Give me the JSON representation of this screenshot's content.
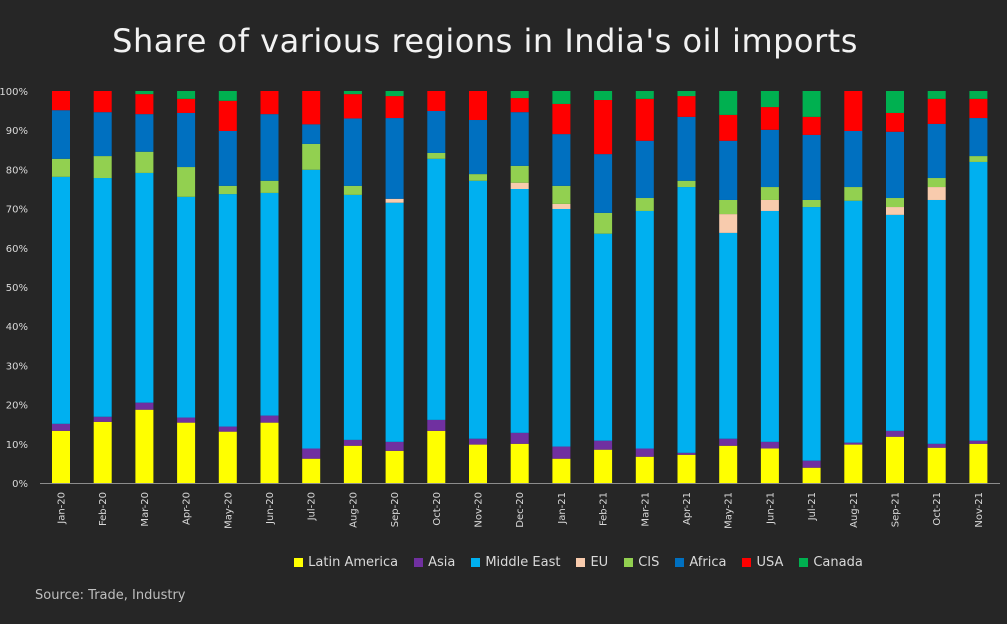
{
  "chart_data": {
    "type": "bar",
    "stacked": true,
    "percent": true,
    "title": "Share of various regions in India's oil imports",
    "source": "Source: Trade, Industry",
    "categories": [
      "Jan-20",
      "Feb-20",
      "Mar-20",
      "Apr-20",
      "May-20",
      "Jun-20",
      "Jul-20",
      "Aug-20",
      "Sep-20",
      "Oct-20",
      "Nov-20",
      "Dec-20",
      "Jan-21",
      "Feb-21",
      "Mar-21",
      "Apr-21",
      "May-21",
      "Jun-21",
      "Jul-21",
      "Aug-21",
      "Sep-21",
      "Oct-21",
      "Nov-21"
    ],
    "ylim": [
      0,
      100
    ],
    "yticks": [
      "0%",
      "10%",
      "20%",
      "30%",
      "40%",
      "50%",
      "60%",
      "70%",
      "80%",
      "90%",
      "100%"
    ],
    "grid": false,
    "legend_position": "bottom",
    "series": [
      {
        "name": "Latin America",
        "color": "#FFFF00",
        "values": [
          13.3,
          15.6,
          18.7,
          15.4,
          13.1,
          15.4,
          6.2,
          9.5,
          8.2,
          13.3,
          9.8,
          10.0,
          6.2,
          8.5,
          6.7,
          7.2,
          9.5,
          8.8,
          3.9,
          9.8,
          11.8,
          9.0,
          10.0
        ]
      },
      {
        "name": "Asia",
        "color": "#7030A0",
        "values": [
          1.8,
          1.3,
          1.8,
          1.3,
          1.3,
          1.8,
          2.6,
          1.5,
          2.3,
          2.8,
          1.5,
          2.8,
          3.1,
          2.3,
          2.1,
          0.5,
          1.8,
          1.7,
          1.8,
          0.5,
          1.5,
          1.0,
          0.8
        ]
      },
      {
        "name": "Middle East",
        "color": "#00B0F0",
        "values": [
          63.0,
          60.9,
          58.6,
          56.3,
          59.3,
          56.8,
          71.1,
          62.5,
          61.0,
          66.6,
          65.8,
          62.2,
          60.6,
          52.8,
          60.6,
          67.8,
          52.5,
          58.9,
          64.7,
          61.7,
          55.1,
          62.2,
          71.1
        ]
      },
      {
        "name": "EU",
        "color": "#F8CBAD",
        "values": [
          0,
          0,
          0,
          0,
          0,
          0,
          0,
          0,
          1.0,
          0,
          0,
          1.6,
          1.3,
          0,
          0,
          0,
          4.8,
          2.8,
          0,
          0,
          2.0,
          3.3,
          0
        ]
      },
      {
        "name": "CIS",
        "color": "#92D050",
        "values": [
          4.6,
          5.6,
          5.4,
          7.6,
          2.1,
          3.1,
          6.6,
          2.3,
          0,
          1.5,
          1.7,
          4.3,
          4.6,
          5.3,
          3.3,
          1.6,
          3.6,
          3.3,
          1.8,
          3.5,
          2.3,
          2.3,
          1.5
        ]
      },
      {
        "name": "Africa",
        "color": "#0070C0",
        "values": [
          12.4,
          11.2,
          9.6,
          13.8,
          14.0,
          17.0,
          5.0,
          17.2,
          20.6,
          10.7,
          13.8,
          13.7,
          13.2,
          15.0,
          14.6,
          16.3,
          15.1,
          14.6,
          16.6,
          14.3,
          16.9,
          13.8,
          9.7
        ]
      },
      {
        "name": "USA",
        "color": "#FF0000",
        "values": [
          4.9,
          5.4,
          5.1,
          3.6,
          7.7,
          5.9,
          8.5,
          6.2,
          5.6,
          5.1,
          7.4,
          3.6,
          7.7,
          13.8,
          10.7,
          5.3,
          6.6,
          5.8,
          4.6,
          10.2,
          4.8,
          6.4,
          4.9
        ]
      },
      {
        "name": "Canada",
        "color": "#00B050",
        "values": [
          0,
          0,
          0.8,
          2.0,
          2.5,
          0,
          0,
          0.8,
          1.3,
          0,
          0,
          1.8,
          3.3,
          2.3,
          2.0,
          1.3,
          6.1,
          4.1,
          6.6,
          0,
          5.6,
          2.0,
          2.0
        ]
      }
    ]
  }
}
